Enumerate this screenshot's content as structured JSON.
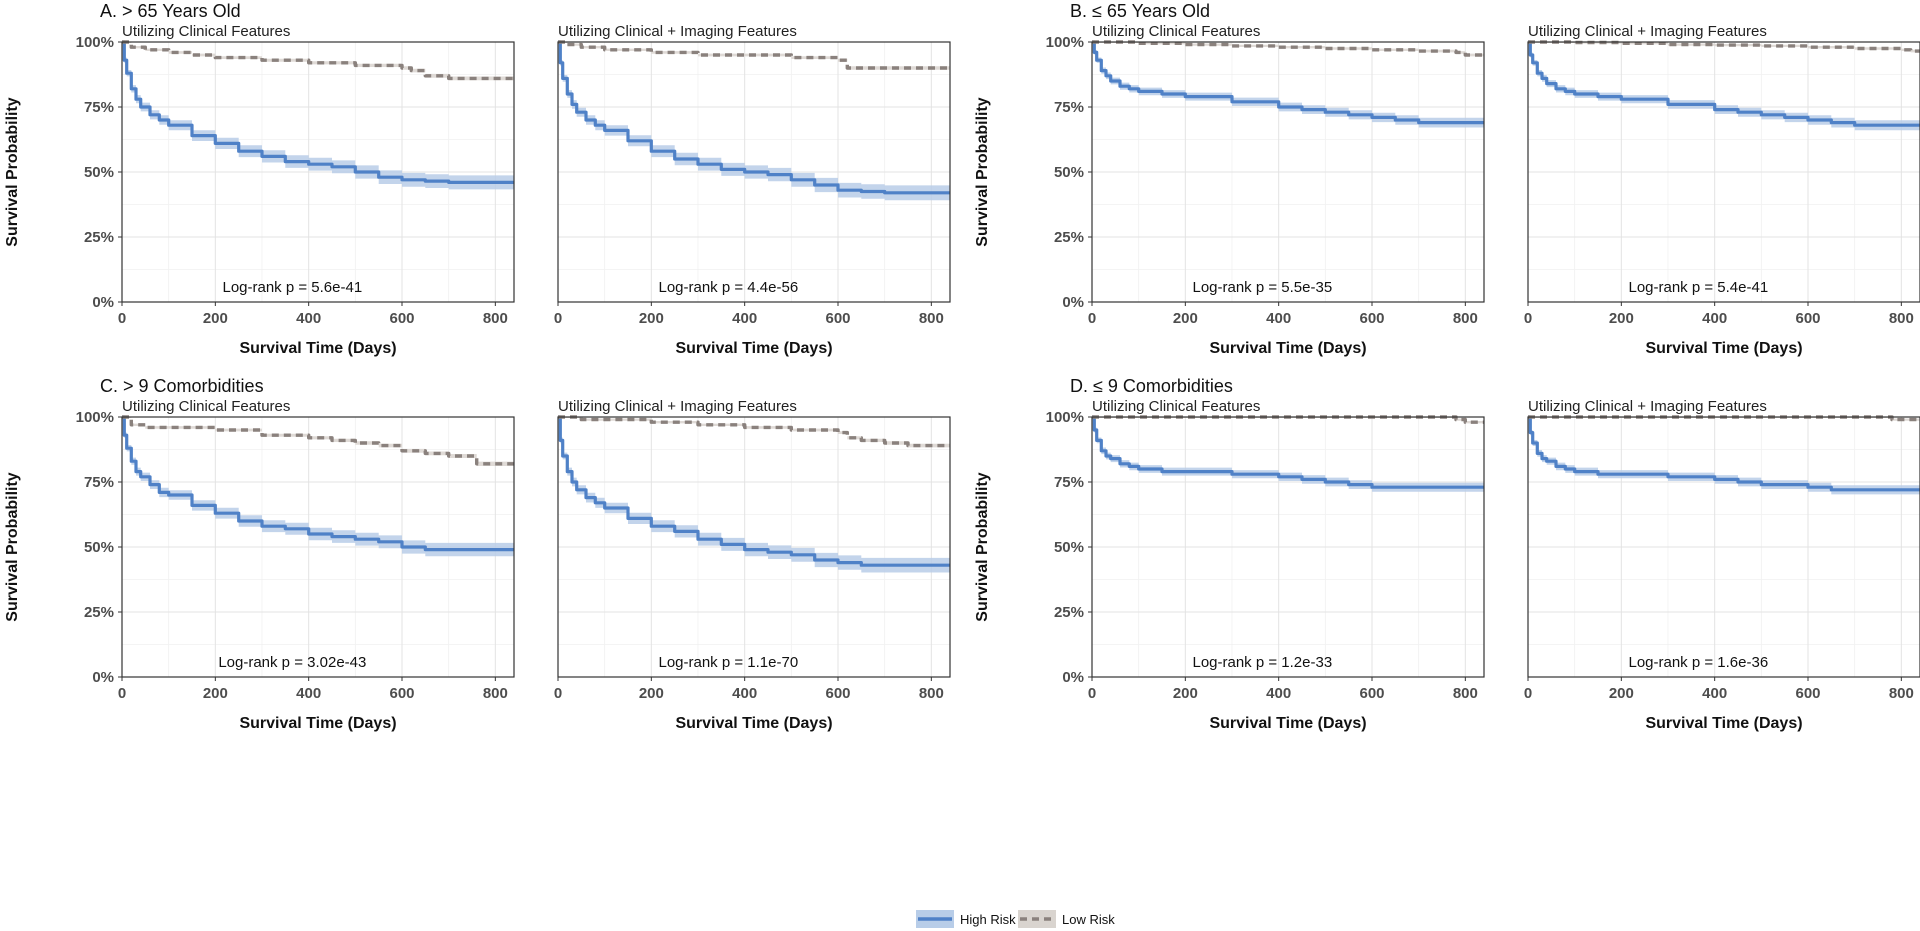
{
  "legend": {
    "items": [
      {
        "label": "High Risk",
        "color": "#4f81c7",
        "band": "#b8cde8",
        "style": "solid"
      },
      {
        "label": "Low Risk",
        "color": "#8a817d",
        "band": "#d9d4cf",
        "style": "dashed"
      }
    ]
  },
  "chart_data": {
    "type": "line",
    "subtype": "kaplan-meier",
    "xlabel": "Survival Time (Days)",
    "ylabel": "Survival Probability",
    "x_ticks": [
      "0",
      "200",
      "400",
      "600",
      "800"
    ],
    "y_ticks": [
      "0%",
      "25%",
      "50%",
      "75%",
      "100%"
    ],
    "xlim": [
      0,
      840
    ],
    "ylim": [
      0,
      1
    ],
    "legend_position": "bottom-center",
    "groups": [
      {
        "title": "A. > 65 Years Old",
        "panels": [
          {
            "subtitle": "Utilizing Clinical Features",
            "pvalue": "Log-rank p = 5.6e-41",
            "series": [
              {
                "name": "High Risk",
                "x": [
                  0,
                  5,
                  10,
                  20,
                  30,
                  40,
                  60,
                  80,
                  100,
                  150,
                  200,
                  250,
                  300,
                  350,
                  400,
                  450,
                  500,
                  550,
                  600,
                  650,
                  700,
                  750,
                  800,
                  840
                ],
                "y": [
                  1.0,
                  0.93,
                  0.88,
                  0.82,
                  0.78,
                  0.75,
                  0.72,
                  0.7,
                  0.68,
                  0.64,
                  0.61,
                  0.58,
                  0.56,
                  0.54,
                  0.53,
                  0.52,
                  0.5,
                  0.48,
                  0.47,
                  0.465,
                  0.46,
                  0.46,
                  0.46,
                  0.46
                ]
              },
              {
                "name": "Low Risk",
                "x": [
                  0,
                  20,
                  50,
                  100,
                  150,
                  200,
                  300,
                  400,
                  500,
                  600,
                  620,
                  650,
                  700,
                  750,
                  800,
                  840
                ],
                "y": [
                  1.0,
                  0.98,
                  0.97,
                  0.96,
                  0.95,
                  0.94,
                  0.93,
                  0.92,
                  0.91,
                  0.9,
                  0.89,
                  0.87,
                  0.86,
                  0.86,
                  0.86,
                  0.86
                ]
              }
            ]
          },
          {
            "subtitle": "Utilizing Clinical + Imaging Features",
            "pvalue": "Log-rank p = 4.4e-56",
            "series": [
              {
                "name": "High Risk",
                "x": [
                  0,
                  5,
                  10,
                  20,
                  30,
                  40,
                  60,
                  80,
                  100,
                  150,
                  200,
                  250,
                  300,
                  350,
                  400,
                  450,
                  500,
                  550,
                  600,
                  650,
                  700,
                  750,
                  800,
                  840
                ],
                "y": [
                  1.0,
                  0.92,
                  0.86,
                  0.8,
                  0.76,
                  0.73,
                  0.7,
                  0.68,
                  0.66,
                  0.62,
                  0.58,
                  0.55,
                  0.53,
                  0.51,
                  0.5,
                  0.49,
                  0.47,
                  0.45,
                  0.43,
                  0.425,
                  0.42,
                  0.42,
                  0.42,
                  0.42
                ]
              },
              {
                "name": "Low Risk",
                "x": [
                  0,
                  20,
                  50,
                  100,
                  200,
                  300,
                  400,
                  500,
                  600,
                  620,
                  650,
                  700,
                  750,
                  800,
                  840
                ],
                "y": [
                  1.0,
                  0.99,
                  0.98,
                  0.97,
                  0.96,
                  0.95,
                  0.95,
                  0.94,
                  0.93,
                  0.9,
                  0.9,
                  0.9,
                  0.9,
                  0.9,
                  0.9
                ]
              }
            ]
          }
        ]
      },
      {
        "title": "B. ≤ 65 Years Old",
        "panels": [
          {
            "subtitle": "Utilizing Clinical Features",
            "pvalue": "Log-rank p = 5.5e-35",
            "series": [
              {
                "name": "High Risk",
                "x": [
                  0,
                  5,
                  10,
                  20,
                  30,
                  40,
                  60,
                  80,
                  100,
                  150,
                  200,
                  300,
                  400,
                  450,
                  500,
                  550,
                  600,
                  650,
                  700,
                  750,
                  800,
                  840
                ],
                "y": [
                  1.0,
                  0.96,
                  0.93,
                  0.89,
                  0.87,
                  0.85,
                  0.83,
                  0.82,
                  0.81,
                  0.8,
                  0.79,
                  0.77,
                  0.75,
                  0.74,
                  0.73,
                  0.72,
                  0.71,
                  0.7,
                  0.69,
                  0.69,
                  0.69,
                  0.69
                ]
              },
              {
                "name": "Low Risk",
                "x": [
                  0,
                  100,
                  200,
                  300,
                  400,
                  500,
                  600,
                  700,
                  780,
                  800,
                  840
                ],
                "y": [
                  1.0,
                  0.995,
                  0.99,
                  0.985,
                  0.98,
                  0.975,
                  0.97,
                  0.965,
                  0.96,
                  0.95,
                  0.95
                ]
              }
            ]
          },
          {
            "subtitle": "Utilizing Clinical + Imaging Features",
            "pvalue": "Log-rank p = 5.4e-41",
            "series": [
              {
                "name": "High Risk",
                "x": [
                  0,
                  5,
                  10,
                  20,
                  30,
                  40,
                  60,
                  80,
                  100,
                  150,
                  200,
                  300,
                  400,
                  450,
                  500,
                  550,
                  600,
                  650,
                  700,
                  750,
                  800,
                  840
                ],
                "y": [
                  1.0,
                  0.95,
                  0.92,
                  0.88,
                  0.86,
                  0.84,
                  0.82,
                  0.81,
                  0.8,
                  0.79,
                  0.78,
                  0.76,
                  0.74,
                  0.73,
                  0.72,
                  0.71,
                  0.7,
                  0.69,
                  0.68,
                  0.68,
                  0.68,
                  0.68
                ]
              },
              {
                "name": "Low Risk",
                "x": [
                  0,
                  100,
                  200,
                  300,
                  400,
                  500,
                  600,
                  700,
                  800,
                  820,
                  840
                ],
                "y": [
                  1.0,
                  0.998,
                  0.995,
                  0.99,
                  0.988,
                  0.985,
                  0.98,
                  0.975,
                  0.97,
                  0.965,
                  0.965
                ]
              }
            ]
          }
        ]
      },
      {
        "title": "C. > 9 Comorbidities",
        "panels": [
          {
            "subtitle": "Utilizing Clinical Features",
            "pvalue": "Log-rank p = 3.02e-43",
            "series": [
              {
                "name": "High Risk",
                "x": [
                  0,
                  5,
                  10,
                  20,
                  30,
                  40,
                  60,
                  80,
                  100,
                  150,
                  200,
                  250,
                  300,
                  350,
                  400,
                  450,
                  500,
                  550,
                  600,
                  650,
                  700,
                  750,
                  800,
                  840
                ],
                "y": [
                  1.0,
                  0.93,
                  0.88,
                  0.83,
                  0.79,
                  0.77,
                  0.74,
                  0.71,
                  0.7,
                  0.66,
                  0.63,
                  0.6,
                  0.58,
                  0.57,
                  0.55,
                  0.54,
                  0.53,
                  0.52,
                  0.5,
                  0.49,
                  0.49,
                  0.49,
                  0.49,
                  0.49
                ]
              },
              {
                "name": "Low Risk",
                "x": [
                  0,
                  20,
                  50,
                  100,
                  200,
                  300,
                  400,
                  450,
                  500,
                  550,
                  600,
                  650,
                  700,
                  740,
                  760,
                  800,
                  840
                ],
                "y": [
                  1.0,
                  0.97,
                  0.96,
                  0.96,
                  0.95,
                  0.93,
                  0.92,
                  0.91,
                  0.9,
                  0.89,
                  0.87,
                  0.86,
                  0.85,
                  0.85,
                  0.82,
                  0.82,
                  0.82
                ]
              }
            ]
          },
          {
            "subtitle": "Utilizing Clinical + Imaging Features",
            "pvalue": "Log-rank p = 1.1e-70",
            "series": [
              {
                "name": "High Risk",
                "x": [
                  0,
                  5,
                  10,
                  20,
                  30,
                  40,
                  60,
                  80,
                  100,
                  150,
                  200,
                  250,
                  300,
                  350,
                  400,
                  450,
                  500,
                  550,
                  600,
                  650,
                  700,
                  750,
                  800,
                  840
                ],
                "y": [
                  1.0,
                  0.91,
                  0.85,
                  0.79,
                  0.75,
                  0.72,
                  0.69,
                  0.67,
                  0.65,
                  0.61,
                  0.58,
                  0.56,
                  0.53,
                  0.51,
                  0.49,
                  0.48,
                  0.47,
                  0.45,
                  0.44,
                  0.43,
                  0.43,
                  0.43,
                  0.43,
                  0.43
                ]
              },
              {
                "name": "Low Risk",
                "x": [
                  0,
                  50,
                  100,
                  200,
                  300,
                  400,
                  500,
                  600,
                  620,
                  650,
                  700,
                  750,
                  800,
                  840
                ],
                "y": [
                  1.0,
                  0.99,
                  0.99,
                  0.98,
                  0.97,
                  0.96,
                  0.95,
                  0.94,
                  0.92,
                  0.91,
                  0.9,
                  0.89,
                  0.89,
                  0.89
                ]
              }
            ]
          }
        ]
      },
      {
        "title": "D. ≤ 9 Comorbidities",
        "panels": [
          {
            "subtitle": "Utilizing Clinical Features",
            "pvalue": "Log-rank p = 1.2e-33",
            "series": [
              {
                "name": "High Risk",
                "x": [
                  0,
                  5,
                  10,
                  20,
                  30,
                  40,
                  60,
                  80,
                  100,
                  150,
                  200,
                  300,
                  400,
                  450,
                  500,
                  550,
                  600,
                  650,
                  700,
                  750,
                  800,
                  840
                ],
                "y": [
                  1.0,
                  0.95,
                  0.91,
                  0.87,
                  0.85,
                  0.84,
                  0.82,
                  0.81,
                  0.8,
                  0.79,
                  0.79,
                  0.78,
                  0.77,
                  0.76,
                  0.75,
                  0.74,
                  0.73,
                  0.73,
                  0.73,
                  0.73,
                  0.73,
                  0.73
                ]
              },
              {
                "name": "Low Risk",
                "x": [
                  0,
                  100,
                  200,
                  300,
                  400,
                  500,
                  600,
                  700,
                  780,
                  800,
                  840
                ],
                "y": [
                  1.0,
                  1.0,
                  1.0,
                  1.0,
                  1.0,
                  1.0,
                  1.0,
                  1.0,
                  0.99,
                  0.98,
                  0.98
                ]
              }
            ]
          },
          {
            "subtitle": "Utilizing Clinical + Imaging Features",
            "pvalue": "Log-rank p = 1.6e-36",
            "series": [
              {
                "name": "High Risk",
                "x": [
                  0,
                  5,
                  10,
                  20,
                  30,
                  40,
                  60,
                  80,
                  100,
                  150,
                  200,
                  300,
                  400,
                  450,
                  500,
                  550,
                  600,
                  650,
                  700,
                  750,
                  800,
                  840
                ],
                "y": [
                  1.0,
                  0.94,
                  0.9,
                  0.86,
                  0.84,
                  0.83,
                  0.81,
                  0.8,
                  0.79,
                  0.78,
                  0.78,
                  0.77,
                  0.76,
                  0.75,
                  0.74,
                  0.74,
                  0.73,
                  0.72,
                  0.72,
                  0.72,
                  0.72,
                  0.72
                ]
              },
              {
                "name": "Low Risk",
                "x": [
                  0,
                  100,
                  200,
                  300,
                  400,
                  500,
                  600,
                  700,
                  780,
                  800,
                  840
                ],
                "y": [
                  1.0,
                  1.0,
                  1.0,
                  1.0,
                  1.0,
                  1.0,
                  1.0,
                  1.0,
                  0.99,
                  0.99,
                  0.99
                ]
              }
            ]
          }
        ]
      }
    ]
  }
}
